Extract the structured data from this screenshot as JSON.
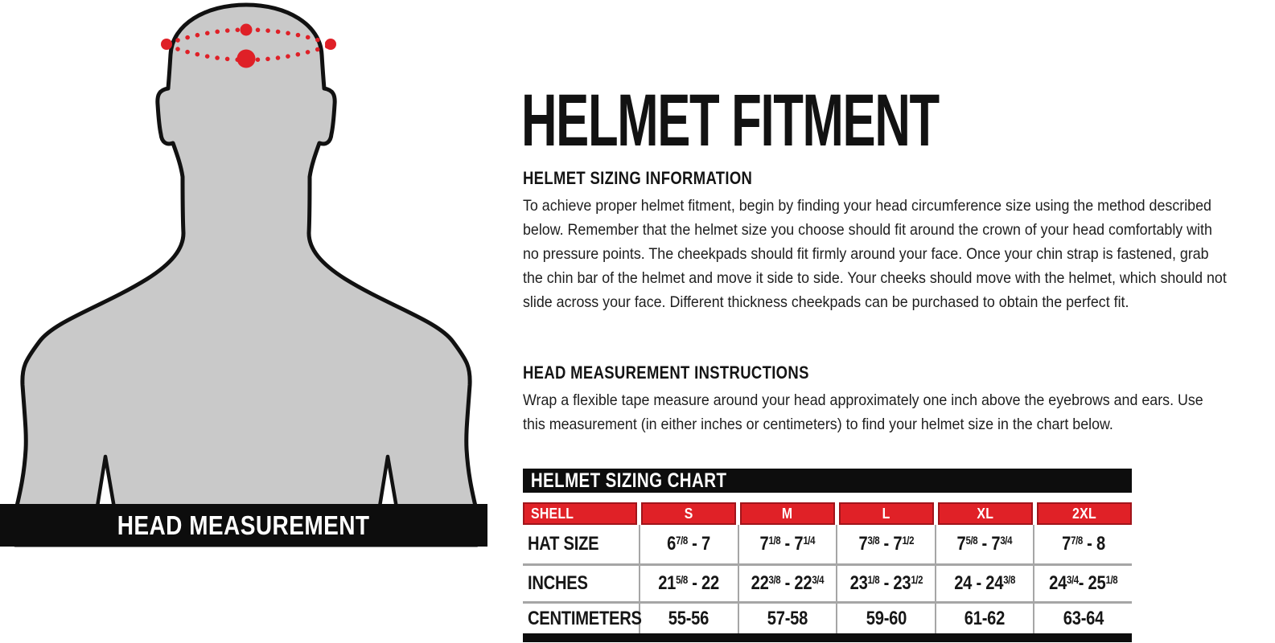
{
  "figure": {
    "label": "HEAD MEASUREMENT",
    "colors": {
      "silhouette_fill": "#c9c9c9",
      "outline": "#111111",
      "measurement_red": "#df2027",
      "banner_bg": "#0d0d0d",
      "banner_text": "#ffffff"
    }
  },
  "content": {
    "title": "HELMET FITMENT",
    "sections": [
      {
        "heading": "HELMET SIZING INFORMATION",
        "body": "To achieve proper helmet fitment, begin by finding your head circumference size using the method described below. Remember that the helmet size you choose should fit around the crown of your head comfortably with no pressure points. The cheekpads should fit firmly around your face. Once your chin strap is fastened, grab the chin bar of the helmet and move it side to side. Your cheeks should move with the helmet, which should not slide across your face. Different thickness cheekpads can be purchased to obtain the perfect fit."
      },
      {
        "heading": "HEAD MEASUREMENT INSTRUCTIONS",
        "body": "Wrap a flexible tape measure around your head approximately one inch above the eyebrows and ears. Use this measurement (in either inches or centimeters) to find your helmet size in the chart below."
      }
    ]
  },
  "sizing_chart": {
    "caption": "HELMET SIZING CHART",
    "columns": [
      "SHELL",
      "S",
      "M",
      "L",
      "XL",
      "2XL"
    ],
    "rows": [
      {
        "label": "HAT SIZE",
        "values": [
          "6^{7/8} - 7",
          "7^{1/8} - 7^{1/4}",
          "7^{3/8} - 7^{1/2}",
          "7^{5/8} - 7^{3/4}",
          "7^{7/8} - 8"
        ]
      },
      {
        "label": "INCHES",
        "values": [
          "21^{5/8} - 22",
          "22^{3/8} - 22^{3/4}",
          "23^{1/8} - 23^{1/2}",
          "24 - 24^{3/8}",
          "24^{3/4}- 25^{1/8}"
        ]
      },
      {
        "label": "CENTIMETERS",
        "values": [
          "55-56",
          "57-58",
          "59-60",
          "61-62",
          "63-64"
        ]
      }
    ],
    "colors": {
      "caption_bg": "#0d0d0d",
      "caption_text": "#ffffff",
      "header_bg": "#e02127",
      "header_border": "#a1151b",
      "header_text": "#ffffff",
      "grid_line": "#a6a6a6",
      "footer_bg": "#0d0d0d"
    }
  }
}
